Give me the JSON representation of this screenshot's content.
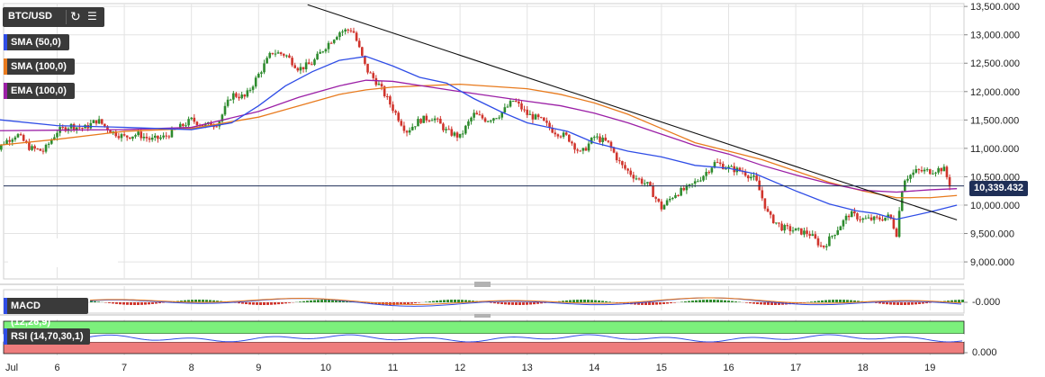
{
  "toolbar": {
    "symbol": "BTC/USD",
    "refresh_icon": "refresh-icon",
    "menu_icon": "bar-chart-icon"
  },
  "indicators": [
    {
      "label": "SMA (50,0)",
      "color": "#2f4de6"
    },
    {
      "label": "SMA (100,0)",
      "color": "#e87a1d"
    },
    {
      "label": "EMA (100,0)",
      "color": "#9b1fa6"
    }
  ],
  "panes": {
    "macd_label": "MACD (12,26,9)",
    "macd_value": "-0.000",
    "rsi_label": "RSI (14,70,30,1)",
    "rsi_value": "0.000"
  },
  "last_price": "10,339.432",
  "chart_data": {
    "type": "candlestick",
    "y_ticks": [
      "13,500.000",
      "13,000.000",
      "12,500.000",
      "12,000.000",
      "11,500.000",
      "11,000.000",
      "10,500.000",
      "10,000.000",
      "9,500.000",
      "9,000.000"
    ],
    "ylim": [
      8700,
      13550
    ],
    "x_ticks": [
      "Jul",
      "6",
      "7",
      "8",
      "9",
      "10",
      "11",
      "12",
      "13",
      "14",
      "15",
      "16",
      "17",
      "18",
      "19"
    ],
    "x_tick_days": [
      5,
      6,
      7,
      8,
      9,
      10,
      11,
      12,
      13,
      14,
      15,
      16,
      17,
      18,
      19
    ],
    "close_series": [
      [
        5.0,
        10800
      ],
      [
        5.2,
        11100
      ],
      [
        5.4,
        11250
      ],
      [
        5.6,
        11000
      ],
      [
        5.8,
        10950
      ],
      [
        6.0,
        11300
      ],
      [
        6.2,
        11400
      ],
      [
        6.4,
        11350
      ],
      [
        6.6,
        11500
      ],
      [
        6.8,
        11300
      ],
      [
        7.0,
        11200
      ],
      [
        7.2,
        11250
      ],
      [
        7.4,
        11150
      ],
      [
        7.6,
        11200
      ],
      [
        7.8,
        11350
      ],
      [
        8.0,
        11500
      ],
      [
        8.2,
        11400
      ],
      [
        8.4,
        11450
      ],
      [
        8.6,
        11950
      ],
      [
        8.8,
        11900
      ],
      [
        9.0,
        12300
      ],
      [
        9.2,
        12700
      ],
      [
        9.4,
        12650
      ],
      [
        9.6,
        12400
      ],
      [
        9.8,
        12500
      ],
      [
        10.0,
        12800
      ],
      [
        10.2,
        13050
      ],
      [
        10.4,
        13100
      ],
      [
        10.6,
        12400
      ],
      [
        10.8,
        12100
      ],
      [
        11.0,
        11700
      ],
      [
        11.2,
        11300
      ],
      [
        11.4,
        11500
      ],
      [
        11.6,
        11550
      ],
      [
        11.8,
        11300
      ],
      [
        12.0,
        11200
      ],
      [
        12.2,
        11600
      ],
      [
        12.4,
        11500
      ],
      [
        12.6,
        11600
      ],
      [
        12.8,
        11850
      ],
      [
        13.0,
        11600
      ],
      [
        13.2,
        11500
      ],
      [
        13.4,
        11300
      ],
      [
        13.6,
        11200
      ],
      [
        13.8,
        10900
      ],
      [
        14.0,
        11200
      ],
      [
        14.2,
        11100
      ],
      [
        14.4,
        10700
      ],
      [
        14.6,
        10500
      ],
      [
        14.8,
        10350
      ],
      [
        15.0,
        9950
      ],
      [
        15.2,
        10200
      ],
      [
        15.4,
        10300
      ],
      [
        15.6,
        10500
      ],
      [
        15.8,
        10750
      ],
      [
        16.0,
        10650
      ],
      [
        16.2,
        10600
      ],
      [
        16.4,
        10450
      ],
      [
        16.6,
        9800
      ],
      [
        16.8,
        9600
      ],
      [
        17.0,
        9550
      ],
      [
        17.2,
        9500
      ],
      [
        17.4,
        9250
      ],
      [
        17.6,
        9550
      ],
      [
        17.8,
        9850
      ],
      [
        18.0,
        9750
      ],
      [
        18.2,
        9750
      ],
      [
        18.4,
        9800
      ],
      [
        18.5,
        9500
      ],
      [
        18.6,
        10450
      ],
      [
        18.8,
        10600
      ],
      [
        19.0,
        10600
      ],
      [
        19.2,
        10650
      ],
      [
        19.3,
        10339
      ]
    ],
    "sma50": [
      [
        5.0,
        11520
      ],
      [
        6.0,
        11400
      ],
      [
        7.0,
        11370
      ],
      [
        8.0,
        11330
      ],
      [
        8.6,
        11450
      ],
      [
        9.0,
        11750
      ],
      [
        9.4,
        12100
      ],
      [
        9.8,
        12350
      ],
      [
        10.2,
        12550
      ],
      [
        10.6,
        12620
      ],
      [
        11.0,
        12450
      ],
      [
        11.4,
        12250
      ],
      [
        11.8,
        12150
      ],
      [
        12.2,
        11880
      ],
      [
        12.6,
        11650
      ],
      [
        13.0,
        11450
      ],
      [
        13.6,
        11300
      ],
      [
        14.0,
        11100
      ],
      [
        14.5,
        10950
      ],
      [
        15.0,
        10850
      ],
      [
        15.5,
        10700
      ],
      [
        16.0,
        10650
      ],
      [
        16.4,
        10550
      ],
      [
        17.0,
        10250
      ],
      [
        17.5,
        10020
      ],
      [
        17.9,
        9900
      ],
      [
        18.2,
        9850
      ],
      [
        18.5,
        9750
      ],
      [
        19.0,
        9880
      ],
      [
        19.4,
        10000
      ]
    ],
    "sma100": [
      [
        5.0,
        11040
      ],
      [
        6.0,
        11160
      ],
      [
        7.0,
        11300
      ],
      [
        8.0,
        11350
      ],
      [
        9.0,
        11550
      ],
      [
        9.6,
        11750
      ],
      [
        10.2,
        11950
      ],
      [
        10.6,
        12030
      ],
      [
        11.0,
        12080
      ],
      [
        12.0,
        12130
      ],
      [
        13.0,
        12050
      ],
      [
        13.5,
        11950
      ],
      [
        14.0,
        11800
      ],
      [
        14.5,
        11600
      ],
      [
        15.0,
        11350
      ],
      [
        15.5,
        11100
      ],
      [
        16.0,
        10950
      ],
      [
        16.5,
        10800
      ],
      [
        17.0,
        10600
      ],
      [
        17.5,
        10400
      ],
      [
        18.0,
        10250
      ],
      [
        18.5,
        10130
      ],
      [
        19.0,
        10130
      ],
      [
        19.4,
        10170
      ]
    ],
    "ema100": [
      [
        5.0,
        11310
      ],
      [
        6.0,
        11320
      ],
      [
        7.0,
        11330
      ],
      [
        8.0,
        11370
      ],
      [
        9.0,
        11650
      ],
      [
        9.6,
        11900
      ],
      [
        10.2,
        12100
      ],
      [
        10.6,
        12200
      ],
      [
        11.0,
        12180
      ],
      [
        12.0,
        12000
      ],
      [
        13.0,
        11830
      ],
      [
        13.5,
        11750
      ],
      [
        14.0,
        11620
      ],
      [
        14.5,
        11450
      ],
      [
        15.0,
        11250
      ],
      [
        15.5,
        11050
      ],
      [
        16.0,
        10900
      ],
      [
        16.5,
        10700
      ],
      [
        17.0,
        10530
      ],
      [
        17.5,
        10380
      ],
      [
        18.0,
        10260
      ],
      [
        18.5,
        10230
      ],
      [
        19.0,
        10270
      ],
      [
        19.4,
        10290
      ]
    ],
    "trendline": [
      [
        9.73,
        13530
      ],
      [
        19.4,
        9740
      ]
    ],
    "last_price": 10339.432,
    "annotations": []
  },
  "colors": {
    "bull": "#2e8b2e",
    "bear": "#d0342c",
    "grid": "#e3e3e3",
    "sma50": "#2f4de6",
    "sma100": "#e87a1d",
    "ema100": "#9b1fa6",
    "trend": "#111111",
    "price_line": "#1f2f57",
    "rsi_over": "#7cf07c",
    "rsi_under": "#ee7d7d"
  }
}
